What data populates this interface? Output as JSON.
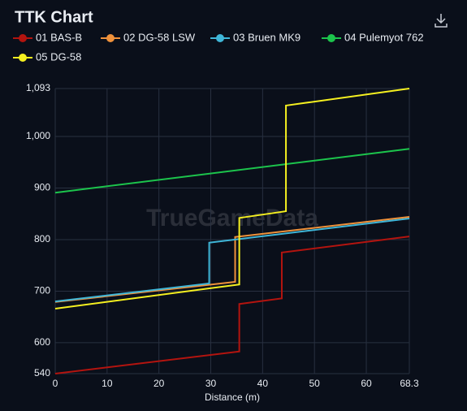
{
  "chart_data": {
    "type": "line",
    "title": "TTK Chart",
    "xlabel": "Distance (m)",
    "watermark": "TrueGameData",
    "xlim": [
      0,
      68.3
    ],
    "xticks": [
      0,
      10,
      20,
      30,
      40,
      50,
      60,
      68.3
    ],
    "ylim": [
      540,
      1093
    ],
    "yticks": [
      540,
      600,
      700,
      800,
      900,
      {
        "value": 1000,
        "label": "1,000"
      },
      {
        "value": 1093,
        "label": "1,093"
      }
    ],
    "grid": true,
    "series": [
      {
        "name": "01 BAS-B",
        "color": "#b3140f",
        "x": [
          0,
          35.5,
          35.5,
          43.7,
          43.7,
          68.3
        ],
        "values": [
          540,
          583,
          675,
          686,
          775,
          806
        ]
      },
      {
        "name": "02 DG-58 LSW",
        "color": "#f0923b",
        "x": [
          0,
          34.7,
          34.7,
          68.3
        ],
        "values": [
          679,
          718,
          805,
          844
        ]
      },
      {
        "name": "03 Bruen MK9",
        "color": "#3fb6d8",
        "x": [
          0,
          29.7,
          29.7,
          68.3
        ],
        "values": [
          680,
          715,
          794,
          841
        ]
      },
      {
        "name": "04 Pulemyot 762",
        "color": "#1cc44c",
        "x": [
          0,
          68.3
        ],
        "values": [
          891,
          976
        ]
      },
      {
        "name": "05 DG-58",
        "color": "#f5f020",
        "x": [
          0,
          35.5,
          35.5,
          44.5,
          44.5,
          68.3
        ],
        "values": [
          666,
          713,
          842,
          855,
          1060,
          1093
        ]
      }
    ]
  }
}
